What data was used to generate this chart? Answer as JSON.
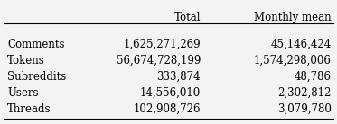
{
  "columns": [
    "",
    "Total",
    "Monthly mean"
  ],
  "rows": [
    [
      "Comments",
      "1,625,271,269",
      "45,146,424"
    ],
    [
      "Tokens",
      "56,674,728,199",
      "1,574,298,006"
    ],
    [
      "Subreddits",
      "333,874",
      "48,786"
    ],
    [
      "Users",
      "14,556,010",
      "2,302,812"
    ],
    [
      "Threads",
      "102,908,726",
      "3,079,780"
    ]
  ],
  "background_color": "#f3f3f3",
  "text_color": "#000000",
  "font_size": 8.5,
  "header_font_size": 8.5,
  "line_color": "#000000",
  "line_width": 0.8
}
